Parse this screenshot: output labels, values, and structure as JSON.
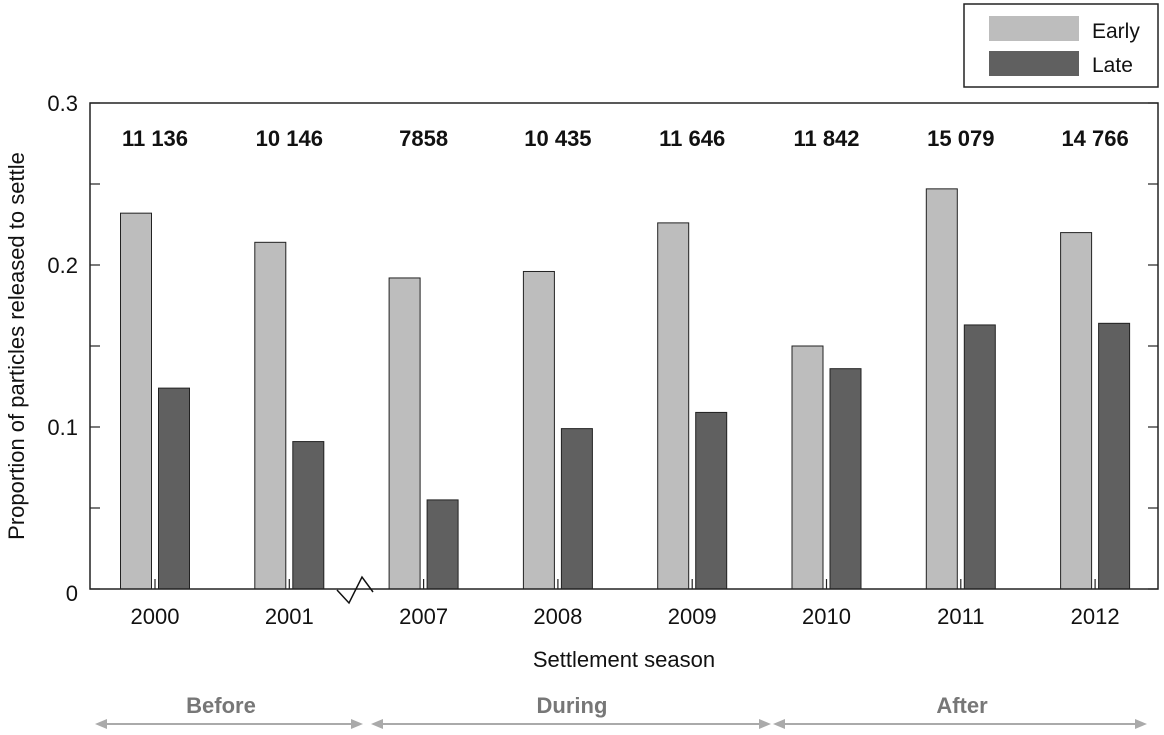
{
  "chart_data": {
    "type": "bar",
    "xlabel": "Settlement season",
    "ylabel": "Proportion of particles released to settle",
    "ylim": [
      0,
      0.3
    ],
    "yticks": [
      0,
      0.1,
      0.2,
      0.3
    ],
    "ytick_labels": [
      "0",
      "0.1",
      "0.2",
      "0.3"
    ],
    "categories": [
      "2000",
      "2001",
      "2007",
      "2008",
      "2009",
      "2010",
      "2011",
      "2012"
    ],
    "series": [
      {
        "name": "Early",
        "color": "#bdbdbd",
        "values": [
          0.232,
          0.214,
          0.192,
          0.196,
          0.226,
          0.15,
          0.247,
          0.22
        ]
      },
      {
        "name": "Late",
        "color": "#606060",
        "values": [
          0.124,
          0.091,
          0.055,
          0.099,
          0.109,
          0.136,
          0.163,
          0.164
        ]
      }
    ],
    "counts": [
      "11 136",
      "10 146",
      "7858",
      "10 435",
      "11 646",
      "11 842",
      "15 079",
      "14 766"
    ],
    "axis_break_after_index": 1,
    "legend_position": "top-right",
    "grid": false,
    "phases": [
      {
        "label": "Before",
        "categories": [
          "2000",
          "2001"
        ]
      },
      {
        "label": "During",
        "categories": [
          "2007",
          "2008",
          "2009"
        ]
      },
      {
        "label": "After",
        "categories": [
          "2010",
          "2011",
          "2012"
        ]
      }
    ]
  }
}
